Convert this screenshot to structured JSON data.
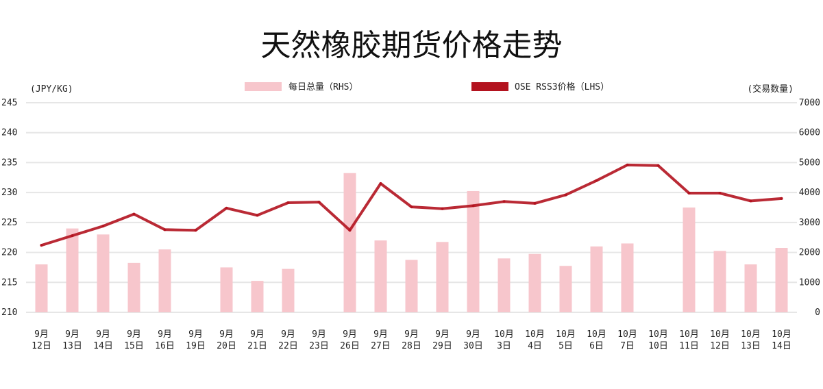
{
  "chart_data": {
    "type": "bar+line",
    "title": "天然橡胶期货价格走势",
    "left_axis_unit": "(JPY/KG)",
    "right_axis_unit": "(交易数量)",
    "left_ylim": [
      210,
      245
    ],
    "left_ticks": [
      "245",
      "240",
      "235",
      "230",
      "225",
      "220",
      "215",
      "210"
    ],
    "right_ylim": [
      0,
      7000
    ],
    "right_ticks": [
      "7000",
      "6000",
      "5000",
      "4000",
      "3000",
      "2000",
      "1000",
      "0"
    ],
    "grid": "horizontal",
    "legend": "top-center",
    "categories": [
      [
        "9月",
        "12日"
      ],
      [
        "9月",
        "13日"
      ],
      [
        "9月",
        "14日"
      ],
      [
        "9月",
        "15日"
      ],
      [
        "9月",
        "16日"
      ],
      [
        "9月",
        "19日"
      ],
      [
        "9月",
        "20日"
      ],
      [
        "9月",
        "21日"
      ],
      [
        "9月",
        "22日"
      ],
      [
        "9月",
        "23日"
      ],
      [
        "9月",
        "26日"
      ],
      [
        "9月",
        "27日"
      ],
      [
        "9月",
        "28日"
      ],
      [
        "9月",
        "29日"
      ],
      [
        "9月",
        "30日"
      ],
      [
        "10月",
        "3日"
      ],
      [
        "10月",
        "4日"
      ],
      [
        "10月",
        "5日"
      ],
      [
        "10月",
        "6日"
      ],
      [
        "10月",
        "7日"
      ],
      [
        "10月",
        "10日"
      ],
      [
        "10月",
        "11日"
      ],
      [
        "10月",
        "12日"
      ],
      [
        "10月",
        "13日"
      ],
      [
        "10月",
        "14日"
      ]
    ],
    "series": [
      {
        "name": "每日总量（RHS）",
        "type": "bar",
        "axis": "right",
        "color": "#f7c6cc",
        "values": [
          1600,
          2800,
          2600,
          1650,
          2100,
          null,
          1500,
          1050,
          1450,
          null,
          4650,
          2400,
          1750,
          2350,
          4050,
          1800,
          1950,
          1550,
          2200,
          2300,
          null,
          3500,
          2050,
          1600,
          2150
        ]
      },
      {
        "name": "OSE RSS3价格（LHS）",
        "type": "line",
        "axis": "left",
        "color": "#b3131f",
        "values": [
          221.2,
          222.8,
          224.4,
          226.4,
          223.8,
          223.7,
          227.4,
          226.2,
          228.3,
          228.4,
          223.7,
          231.5,
          227.6,
          227.3,
          227.8,
          228.5,
          228.2,
          229.6,
          232.0,
          234.6,
          234.5,
          229.9,
          229.9,
          228.6,
          229.0
        ]
      }
    ]
  }
}
